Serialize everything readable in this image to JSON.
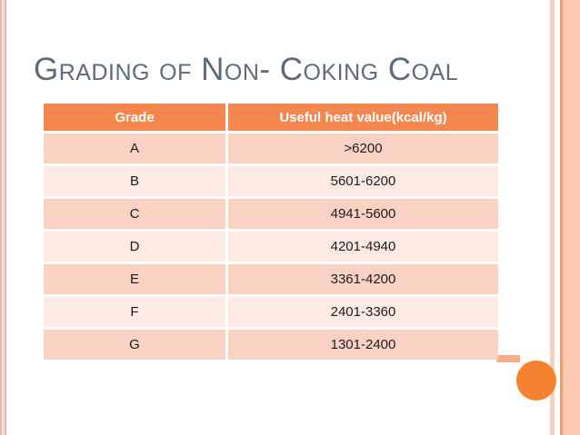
{
  "slide": {
    "title": "Grading of Non- Coking Coal",
    "table": {
      "columns": [
        "Grade",
        "Useful heat value(kcal/kg)"
      ],
      "rows": [
        {
          "grade": "A",
          "value": ">6200"
        },
        {
          "grade": "B",
          "value": "5601-6200"
        },
        {
          "grade": "C",
          "value": "4941-5600"
        },
        {
          "grade": "D",
          "value": "4201-4940"
        },
        {
          "grade": "E",
          "value": "3361-4200"
        },
        {
          "grade": "F",
          "value": "2401-3360"
        },
        {
          "grade": "G",
          "value": "1301-2400"
        }
      ]
    },
    "colors": {
      "table_header_bg": "#f5874e",
      "table_header_text": "#ffffff",
      "row_band_dark": "#f9d2c3",
      "row_band_light": "#fdebe3",
      "title_text": "#5d6a77",
      "accent_circle": "#f5822e",
      "edge_stripe_pink": "#ecbaa9",
      "right_band_peach": "#fbc9b3"
    }
  }
}
